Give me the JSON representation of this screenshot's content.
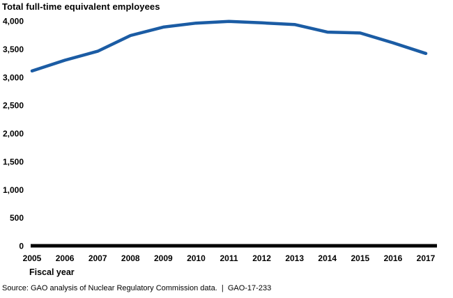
{
  "source_note": "Source: GAO analysis of Nuclear Regulatory Commission data.  |  GAO-17-233",
  "colors": {
    "line": "#1B5CA4",
    "axis": "#000000",
    "text": "#000000",
    "background": "#FFFFFF"
  },
  "chart_data": {
    "type": "line",
    "title": "Total full-time equivalent employees",
    "xlabel": "Fiscal year",
    "ylabel": "",
    "x": [
      "2005",
      "2006",
      "2007",
      "2008",
      "2009",
      "2010",
      "2011",
      "2012",
      "2013",
      "2014",
      "2015",
      "2016",
      "2017"
    ],
    "values": [
      3110,
      3300,
      3460,
      3740,
      3890,
      3960,
      3990,
      3965,
      3935,
      3800,
      3785,
      3610,
      3420
    ],
    "ylim": [
      0,
      4000
    ],
    "ytick_step": 500,
    "ytick_labels": [
      "0",
      "500",
      "1,000",
      "1,500",
      "2,000",
      "2,500",
      "3,000",
      "3,500",
      "4,000"
    ],
    "grid": false,
    "legend": null
  }
}
